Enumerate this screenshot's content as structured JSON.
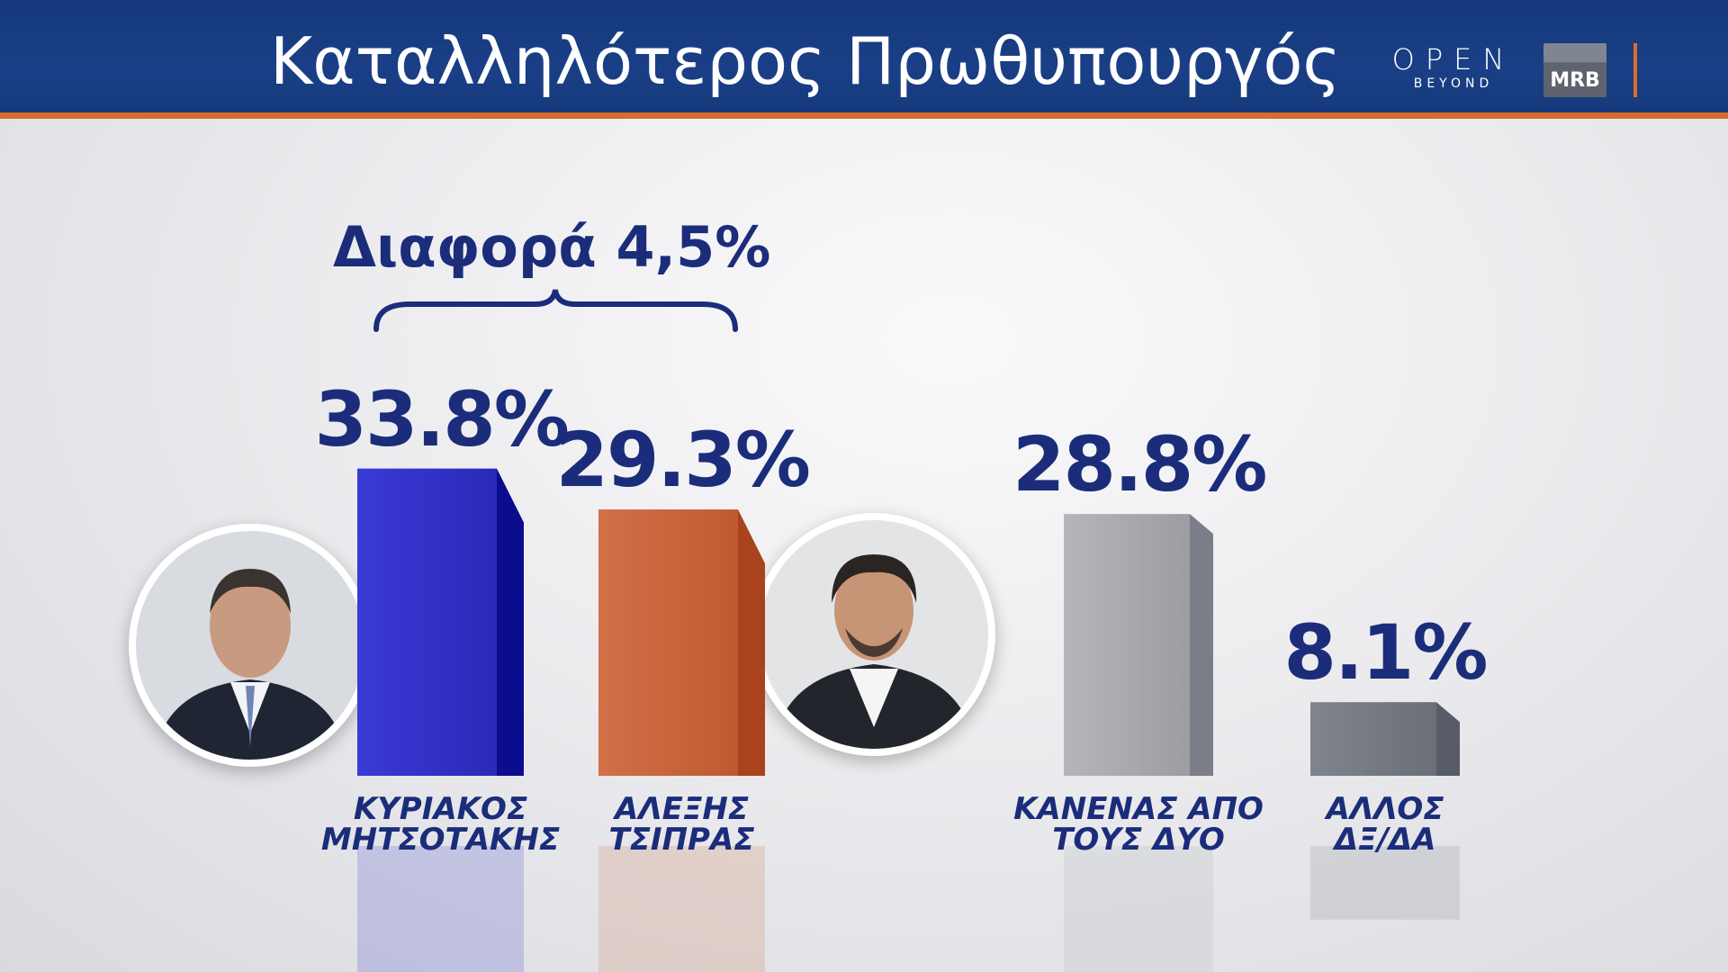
{
  "header": {
    "title": "Καταλληλότερος Πρωθυπουργός",
    "brand_name": "OPEN",
    "brand_sub": "BEYOND",
    "partner": "MRB"
  },
  "annotation": {
    "difference": "Διαφορά 4,5%"
  },
  "colors": {
    "header_bg": "#1a3f86",
    "header_line": "#d96a2f",
    "text_primary": "#1b2d7a"
  },
  "chart_data": {
    "type": "bar",
    "title": "Καταλληλότερος Πρωθυπουργός",
    "categories": [
      "ΚΥΡΙΑΚΟΣ ΜΗΤΣΟΤΑΚΗΣ",
      "ΑΛΕΞΗΣ ΤΣΙΠΡΑΣ",
      "ΚΑΝΕΝΑΣ ΑΠΟ ΤΟΥΣ ΔΥΟ",
      "ΑΛΛΟΣ ΔΞ/ΔΑ"
    ],
    "label_lines": [
      [
        "ΚΥΡΙΑΚΟΣ",
        "ΜΗΤΣΟΤΑΚΗΣ"
      ],
      [
        "ΑΛΕΞΗΣ",
        "ΤΣΙΠΡΑΣ"
      ],
      [
        "ΚΑΝΕΝΑΣ ΑΠΟ",
        "ΤΟΥΣ ΔΥΟ"
      ],
      [
        "ΑΛΛΟΣ",
        "ΔΞ/ΔΑ"
      ]
    ],
    "values": [
      33.8,
      29.3,
      28.8,
      8.1
    ],
    "value_labels": [
      "33.8%",
      "29.3%",
      "28.8%",
      "8.1%"
    ],
    "colors": [
      "#2f2fc8",
      "#c9633a",
      "#a9abb0",
      "#767a82"
    ],
    "ylim": [
      0,
      40
    ],
    "grid": false
  }
}
